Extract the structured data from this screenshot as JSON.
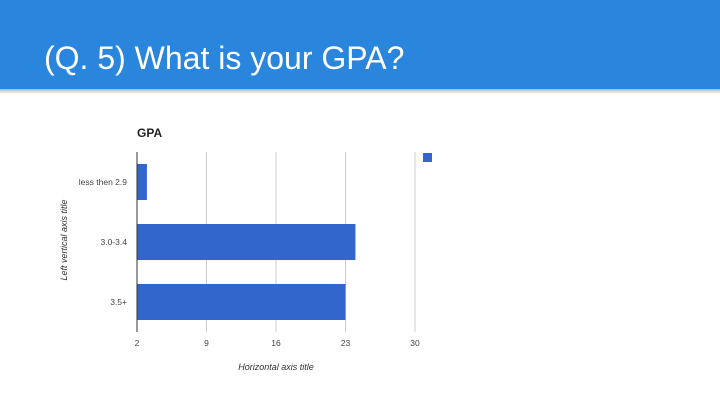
{
  "slide": {
    "title": "(Q. 5) What is your GPA?"
  },
  "colors": {
    "header_bg": "#2a85dc",
    "bar": "#3366cc",
    "grid": "#cccccc"
  },
  "chart_data": {
    "type": "bar",
    "orientation": "horizontal",
    "title": "GPA",
    "xlabel": "Horizontal axis title",
    "ylabel": "Left vertical axis title",
    "categories": [
      "less then 2.9",
      "3.0-3.4",
      "3.5+"
    ],
    "values": [
      3,
      24,
      23
    ],
    "xlim": [
      2,
      30
    ],
    "xticks": [
      2,
      9,
      16,
      23,
      30
    ],
    "grid": true,
    "legend": "top-right, no label"
  }
}
